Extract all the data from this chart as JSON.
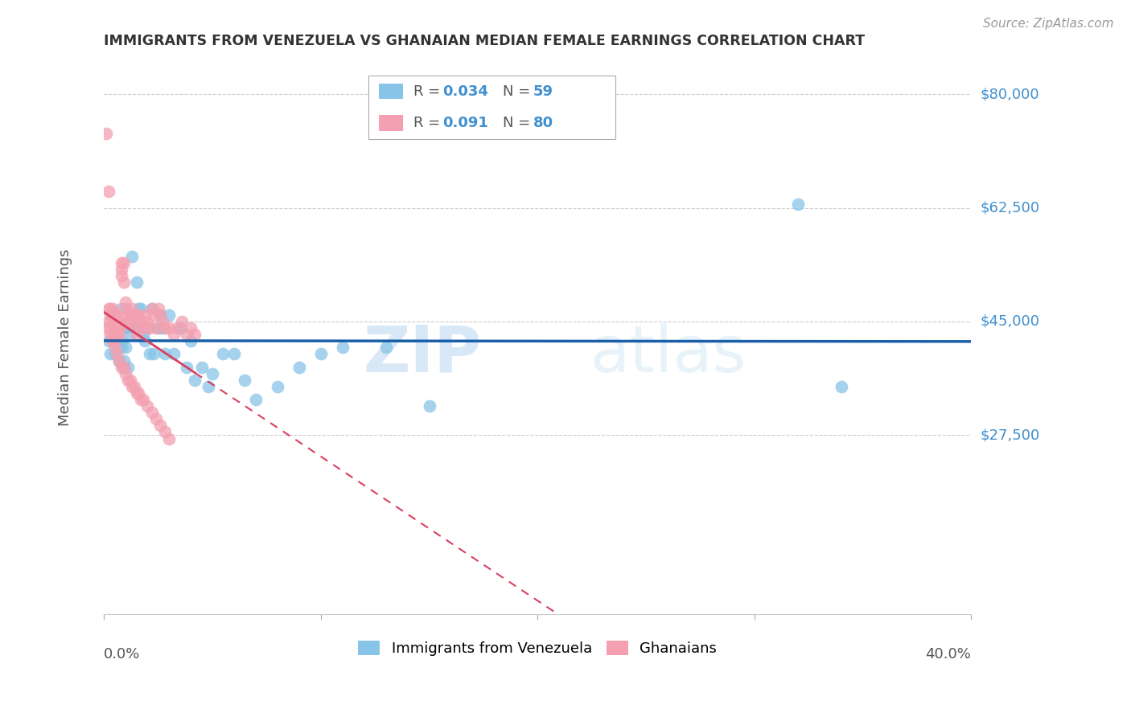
{
  "title": "IMMIGRANTS FROM VENEZUELA VS GHANAIAN MEDIAN FEMALE EARNINGS CORRELATION CHART",
  "source": "Source: ZipAtlas.com",
  "ylabel": "Median Female Earnings",
  "ygrid_lines": [
    80000,
    62500,
    45000,
    27500
  ],
  "xlim": [
    0.0,
    0.4
  ],
  "ylim": [
    0,
    85000
  ],
  "legend_r1": "0.034",
  "legend_n1": "59",
  "legend_r2": "0.091",
  "legend_n2": "80",
  "color_blue": "#88c4e8",
  "color_pink": "#f4a0b0",
  "color_blue_line": "#1a5fa8",
  "color_pink_line": "#d94060",
  "color_ytick": "#4090d0",
  "watermark_zip": "ZIP",
  "watermark_atlas": "atlas",
  "venezuela_x": [
    0.002,
    0.003,
    0.004,
    0.005,
    0.005,
    0.006,
    0.006,
    0.007,
    0.007,
    0.007,
    0.008,
    0.008,
    0.008,
    0.009,
    0.009,
    0.009,
    0.01,
    0.01,
    0.011,
    0.011,
    0.012,
    0.012,
    0.013,
    0.014,
    0.015,
    0.016,
    0.016,
    0.017,
    0.018,
    0.019,
    0.02,
    0.021,
    0.022,
    0.023,
    0.025,
    0.026,
    0.027,
    0.028,
    0.03,
    0.032,
    0.035,
    0.038,
    0.04,
    0.042,
    0.045,
    0.048,
    0.05,
    0.055,
    0.06,
    0.065,
    0.07,
    0.08,
    0.09,
    0.1,
    0.11,
    0.13,
    0.15,
    0.32,
    0.34
  ],
  "venezuela_y": [
    42000,
    40000,
    46000,
    44000,
    40000,
    45000,
    43000,
    44000,
    39000,
    41000,
    47000,
    42000,
    41000,
    44000,
    39000,
    38000,
    44000,
    41000,
    45000,
    38000,
    46000,
    43000,
    55000,
    44000,
    51000,
    47000,
    44000,
    47000,
    43000,
    42000,
    44000,
    40000,
    47000,
    40000,
    44000,
    46000,
    44000,
    40000,
    46000,
    40000,
    44000,
    38000,
    42000,
    36000,
    38000,
    35000,
    37000,
    40000,
    40000,
    36000,
    33000,
    35000,
    38000,
    40000,
    41000,
    41000,
    32000,
    63000,
    35000
  ],
  "ghana_x": [
    0.001,
    0.002,
    0.002,
    0.003,
    0.003,
    0.003,
    0.004,
    0.004,
    0.004,
    0.005,
    0.005,
    0.005,
    0.005,
    0.006,
    0.006,
    0.006,
    0.006,
    0.007,
    0.007,
    0.007,
    0.007,
    0.008,
    0.008,
    0.008,
    0.009,
    0.009,
    0.01,
    0.01,
    0.011,
    0.011,
    0.012,
    0.012,
    0.013,
    0.014,
    0.015,
    0.015,
    0.016,
    0.017,
    0.018,
    0.019,
    0.02,
    0.021,
    0.022,
    0.023,
    0.024,
    0.025,
    0.026,
    0.027,
    0.028,
    0.03,
    0.032,
    0.034,
    0.036,
    0.038,
    0.04,
    0.042,
    0.001,
    0.002,
    0.003,
    0.004,
    0.005,
    0.006,
    0.007,
    0.008,
    0.009,
    0.01,
    0.011,
    0.012,
    0.013,
    0.014,
    0.015,
    0.016,
    0.017,
    0.018,
    0.02,
    0.022,
    0.024,
    0.026,
    0.028,
    0.03
  ],
  "ghana_y": [
    44000,
    45000,
    47000,
    43000,
    46000,
    44000,
    45000,
    42000,
    47000,
    43000,
    46000,
    44000,
    45000,
    43000,
    44000,
    45000,
    46000,
    44000,
    43000,
    45000,
    44000,
    54000,
    53000,
    52000,
    54000,
    51000,
    47000,
    48000,
    46000,
    45000,
    46000,
    45000,
    47000,
    46000,
    44000,
    43000,
    46000,
    45000,
    44000,
    46000,
    45000,
    44000,
    47000,
    46000,
    44000,
    47000,
    46000,
    45000,
    44000,
    44000,
    43000,
    44000,
    45000,
    43000,
    44000,
    43000,
    74000,
    65000,
    47000,
    42000,
    41000,
    40000,
    39000,
    38000,
    38000,
    37000,
    36000,
    36000,
    35000,
    35000,
    34000,
    34000,
    33000,
    33000,
    32000,
    31000,
    30000,
    29000,
    28000,
    27000
  ]
}
